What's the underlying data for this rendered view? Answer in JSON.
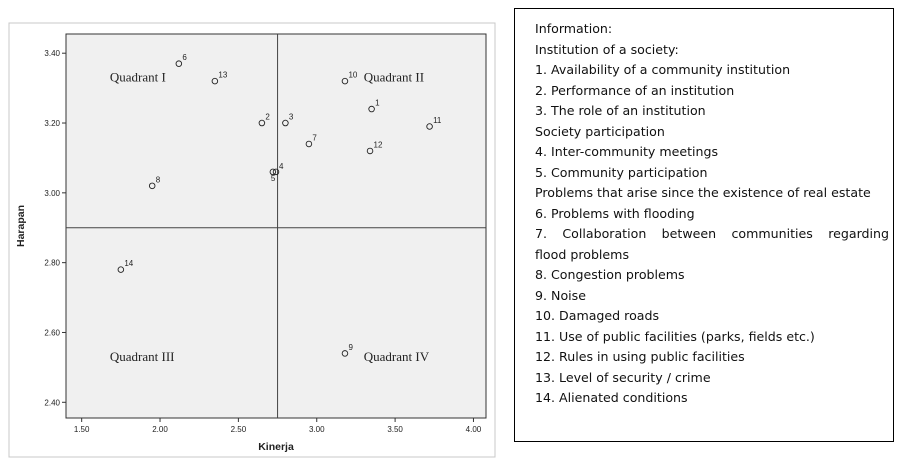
{
  "chart_data": {
    "type": "scatter",
    "xlabel": "Kinerja",
    "ylabel": "Harapan",
    "xlim": [
      1.4,
      4.08
    ],
    "ylim": [
      2.355,
      3.455
    ],
    "x_ticks": [
      "1.50",
      "2.00",
      "2.50",
      "3.00",
      "3.50",
      "4.00"
    ],
    "y_ticks": [
      "2.40",
      "2.60",
      "2.80",
      "3.00",
      "3.20",
      "3.40"
    ],
    "x_tick_values": [
      1.5,
      2.0,
      2.5,
      3.0,
      3.5,
      4.0
    ],
    "y_tick_values": [
      2.4,
      2.6,
      2.8,
      3.0,
      3.2,
      3.4
    ],
    "reference_lines": {
      "x": 2.75,
      "y": 2.9
    },
    "grid": false,
    "points": [
      {
        "label": "1",
        "x": 3.35,
        "y": 3.24
      },
      {
        "label": "2",
        "x": 2.65,
        "y": 3.2
      },
      {
        "label": "3",
        "x": 2.8,
        "y": 3.2
      },
      {
        "label": "4",
        "x": 2.74,
        "y": 3.06
      },
      {
        "label": "5",
        "x": 2.72,
        "y": 3.06
      },
      {
        "label": "6",
        "x": 2.12,
        "y": 3.37
      },
      {
        "label": "7",
        "x": 2.95,
        "y": 3.14
      },
      {
        "label": "8",
        "x": 1.95,
        "y": 3.02
      },
      {
        "label": "9",
        "x": 3.18,
        "y": 2.54
      },
      {
        "label": "10",
        "x": 3.18,
        "y": 3.32
      },
      {
        "label": "11",
        "x": 3.72,
        "y": 3.19
      },
      {
        "label": "12",
        "x": 3.34,
        "y": 3.12
      },
      {
        "label": "13",
        "x": 2.35,
        "y": 3.32
      },
      {
        "label": "14",
        "x": 1.75,
        "y": 2.78
      }
    ],
    "quadrant_labels": [
      {
        "text": "Quadrant I",
        "x": 1.68,
        "y": 3.33
      },
      {
        "text": "Quadrant II",
        "x": 3.3,
        "y": 3.33
      },
      {
        "text": "Quadrant III",
        "x": 1.68,
        "y": 2.53
      },
      {
        "text": "Quadrant IV",
        "x": 3.3,
        "y": 2.53
      }
    ]
  },
  "info": {
    "lines": [
      {
        "text": "Information:",
        "justify": false
      },
      {
        "text": "Institution of a society:",
        "justify": false
      },
      {
        "text": "1. Availability of a community institution",
        "justify": false
      },
      {
        "text": "2. Performance of an institution",
        "justify": false
      },
      {
        "text": "3. The role of an institution",
        "justify": false
      },
      {
        "text": "Society participation",
        "justify": false
      },
      {
        "text": "4. Inter-community meetings",
        "justify": false
      },
      {
        "text": "5. Community participation",
        "justify": false
      },
      {
        "text": "Problems that arise since the existence of real estate",
        "justify": false
      },
      {
        "text": "6. Problems with flooding",
        "justify": false
      },
      {
        "text": "7.  Collaboration  between  communities  regarding",
        "justify": true
      },
      {
        "text": "flood problems",
        "justify": false
      },
      {
        "text": "8. Congestion problems",
        "justify": false
      },
      {
        "text": "9. Noise",
        "justify": false
      },
      {
        "text": "10. Damaged roads",
        "justify": false
      },
      {
        "text": "11. Use of public facilities (parks, fields etc.)",
        "justify": false
      },
      {
        "text": "12. Rules in using public facilities",
        "justify": false
      },
      {
        "text": "13. Level of security / crime",
        "justify": false
      },
      {
        "text": "14. Alienated conditions",
        "justify": false
      }
    ]
  }
}
